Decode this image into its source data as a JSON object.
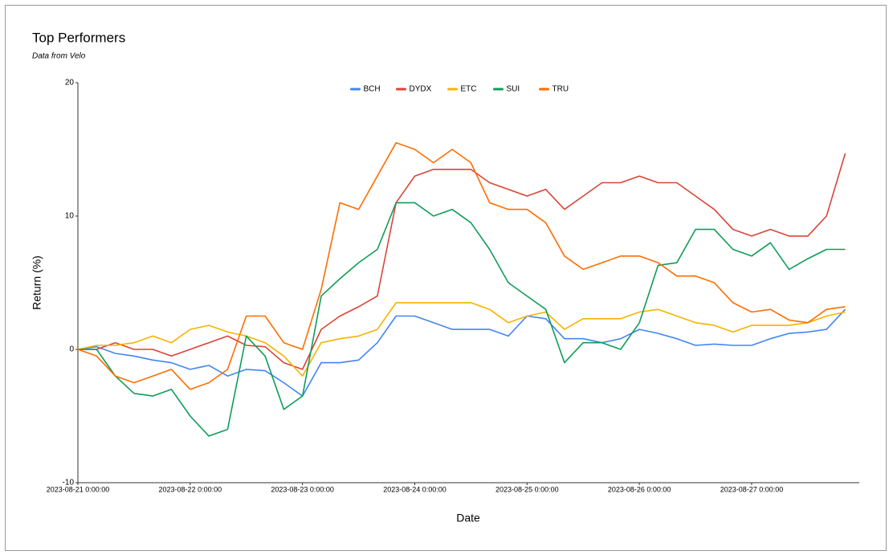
{
  "chart_data": {
    "type": "line",
    "title": "Top Performers",
    "subtitle": "Data from Velo",
    "x_label": "Date",
    "y_label": "Return (%)",
    "legend": "top",
    "x": [
      "2023-08-21 0:00:00",
      "2023-08-21 4:00:00",
      "2023-08-21 8:00:00",
      "2023-08-21 12:00:00",
      "2023-08-21 16:00:00",
      "2023-08-21 20:00:00",
      "2023-08-22 0:00:00",
      "2023-08-22 4:00:00",
      "2023-08-22 8:00:00",
      "2023-08-22 12:00:00",
      "2023-08-22 16:00:00",
      "2023-08-22 20:00:00",
      "2023-08-23 0:00:00",
      "2023-08-23 4:00:00",
      "2023-08-23 8:00:00",
      "2023-08-23 12:00:00",
      "2023-08-23 16:00:00",
      "2023-08-23 20:00:00",
      "2023-08-24 0:00:00",
      "2023-08-24 4:00:00",
      "2023-08-24 8:00:00",
      "2023-08-24 12:00:00",
      "2023-08-24 16:00:00",
      "2023-08-24 20:00:00",
      "2023-08-25 0:00:00",
      "2023-08-25 4:00:00",
      "2023-08-25 8:00:00",
      "2023-08-25 12:00:00",
      "2023-08-25 16:00:00",
      "2023-08-25 20:00:00",
      "2023-08-26 0:00:00",
      "2023-08-26 4:00:00",
      "2023-08-26 8:00:00",
      "2023-08-26 12:00:00",
      "2023-08-26 16:00:00",
      "2023-08-26 20:00:00",
      "2023-08-27 0:00:00",
      "2023-08-27 4:00:00",
      "2023-08-27 8:00:00",
      "2023-08-27 12:00:00",
      "2023-08-27 16:00:00",
      "2023-08-27 20:00:00"
    ],
    "series": [
      {
        "name": "BCH",
        "color": "#4285f4",
        "values": [
          0,
          0.2,
          -0.3,
          -0.5,
          -0.8,
          -1,
          -1.5,
          -1.2,
          -2,
          -1.5,
          -1.6,
          -2.5,
          -3.5,
          -1,
          -1,
          -0.8,
          0.5,
          2.5,
          2.5,
          2,
          1.5,
          1.5,
          1.5,
          1,
          2.5,
          2.3,
          0.8,
          0.8,
          0.5,
          0.8,
          1.5,
          1.2,
          0.8,
          0.3,
          0.4,
          0.3,
          0.3,
          0.8,
          1.2,
          1.3,
          1.5,
          3
        ]
      },
      {
        "name": "DYDX",
        "color": "#db4437",
        "values": [
          0,
          0,
          0.5,
          0,
          0,
          -0.5,
          0,
          0.5,
          1,
          0.3,
          0.2,
          -1,
          -1.5,
          1.5,
          2.5,
          3.2,
          4,
          11,
          13,
          13.5,
          13.5,
          13.5,
          12.5,
          12,
          11.5,
          12,
          10.5,
          11.5,
          12.5,
          12.5,
          13,
          12.5,
          12.5,
          11.5,
          10.5,
          9,
          8.5,
          9,
          8.5,
          8.5,
          10,
          14.7
        ]
      },
      {
        "name": "ETC",
        "color": "#f4b400",
        "values": [
          0,
          0.3,
          0.3,
          0.5,
          1,
          0.5,
          1.5,
          1.8,
          1.3,
          1,
          0.5,
          -0.5,
          -2,
          0.5,
          0.8,
          1,
          1.5,
          3.5,
          3.5,
          3.5,
          3.5,
          3.5,
          3,
          2,
          2.5,
          2.8,
          1.5,
          2.3,
          2.3,
          2.3,
          2.8,
          3,
          2.5,
          2,
          1.8,
          1.3,
          1.8,
          1.8,
          1.8,
          2,
          2.5,
          2.8
        ]
      },
      {
        "name": "SUI",
        "color": "#0f9d58",
        "values": [
          0,
          0,
          -2,
          -3.3,
          -3.5,
          -3,
          -5,
          -6.5,
          -6,
          1,
          -0.5,
          -4.5,
          -3.5,
          4,
          5.3,
          6.5,
          7.5,
          11,
          11,
          10,
          10.5,
          9.5,
          7.5,
          5,
          4,
          3,
          -1,
          0.5,
          0.5,
          0,
          2,
          6.3,
          6.5,
          9,
          9,
          7.5,
          7,
          8,
          6,
          6.8,
          7.5,
          7.5
        ]
      },
      {
        "name": "TRU",
        "color": "#ff6d01",
        "values": [
          0,
          -0.5,
          -2,
          -2.5,
          -2,
          -1.5,
          -3,
          -2.5,
          -1.5,
          2.5,
          2.5,
          0.5,
          0,
          4.5,
          11,
          10.5,
          13,
          15.5,
          15,
          14,
          15,
          14,
          11,
          10.5,
          10.5,
          9.5,
          7,
          6,
          6.5,
          7,
          7,
          6.5,
          5.5,
          5.5,
          5,
          3.5,
          2.8,
          3,
          2.2,
          2,
          3,
          3.2
        ]
      }
    ],
    "xlim": [
      "2023-08-21 0:00:00",
      "2023-08-27 23:00:00"
    ],
    "xticks": [
      "2023-08-21 0:00:00",
      "2023-08-22 0:00:00",
      "2023-08-23 0:00:00",
      "2023-08-24 0:00:00",
      "2023-08-25 0:00:00",
      "2023-08-26 0:00:00",
      "2023-08-27 0:00:00"
    ],
    "ylim": [
      -10,
      20
    ],
    "yticks": [
      -10,
      0,
      10,
      20
    ],
    "grid": false
  }
}
